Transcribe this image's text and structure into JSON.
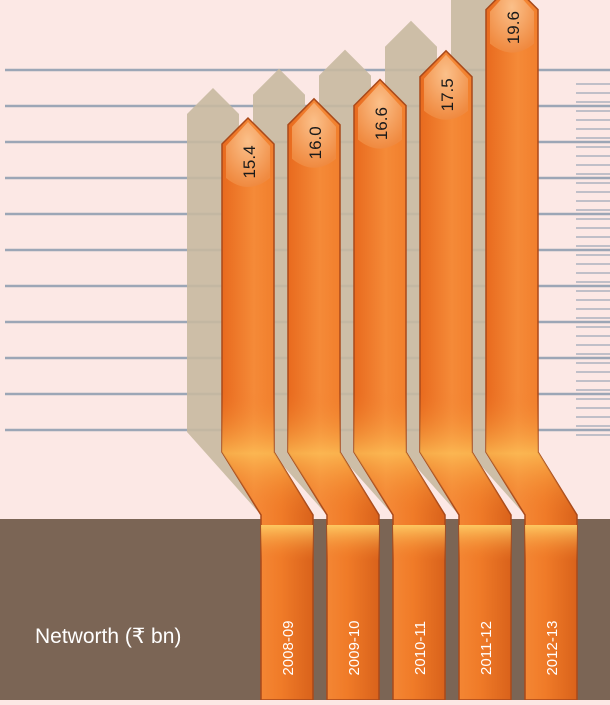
{
  "chart_data": {
    "type": "bar",
    "title": "Networth (₹ bn)",
    "categories": [
      "2008-09",
      "2009-10",
      "2010-11",
      "2011-12",
      "2012-13"
    ],
    "values": [
      15.4,
      16.0,
      16.6,
      17.5,
      19.6
    ],
    "grid": true
  },
  "colors": {
    "background": "#fce8e5",
    "base_panel": "#7b6555",
    "bar": "#f07b28",
    "bar_highlight": "#f8a45a",
    "shadow": "#c8b9a0",
    "grid_line": "#9ca6b6"
  }
}
